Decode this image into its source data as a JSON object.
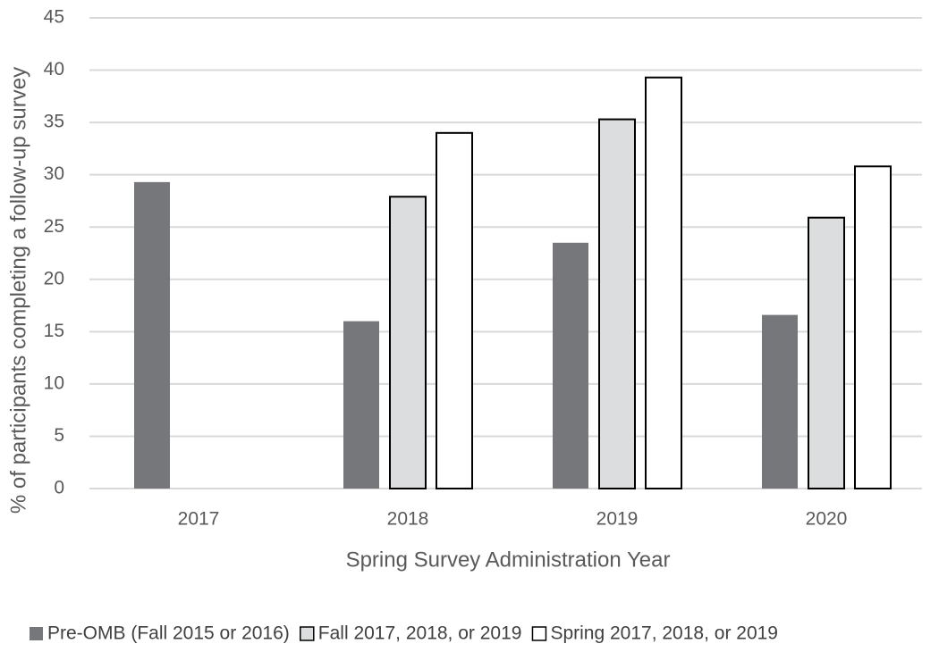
{
  "chart_data": {
    "type": "bar",
    "x_label": "Spring Survey Administration Year",
    "y_label": "% of participants completing a follow-up survey",
    "categories": [
      "2017",
      "2018",
      "2019",
      "2020"
    ],
    "series": [
      {
        "name": "Pre-OMB (Fall 2015 or 2016)",
        "color": "#76777a",
        "values": [
          29.3,
          16.0,
          23.5,
          16.6
        ]
      },
      {
        "name": "Fall 2017, 2018, or 2019",
        "color": "#dcdddf",
        "edgecolor": "#000000",
        "values": [
          null,
          27.9,
          35.3,
          25.9
        ]
      },
      {
        "name": "Spring 2017, 2018, or 2019",
        "color": "#ffffff",
        "edgecolor": "#000000",
        "values": [
          null,
          34.0,
          39.3,
          30.8
        ]
      }
    ],
    "ylim": [
      0,
      45
    ],
    "yticks": [
      0,
      5,
      10,
      15,
      20,
      25,
      30,
      35,
      40,
      45
    ],
    "grid": true,
    "legend": "bottom"
  }
}
